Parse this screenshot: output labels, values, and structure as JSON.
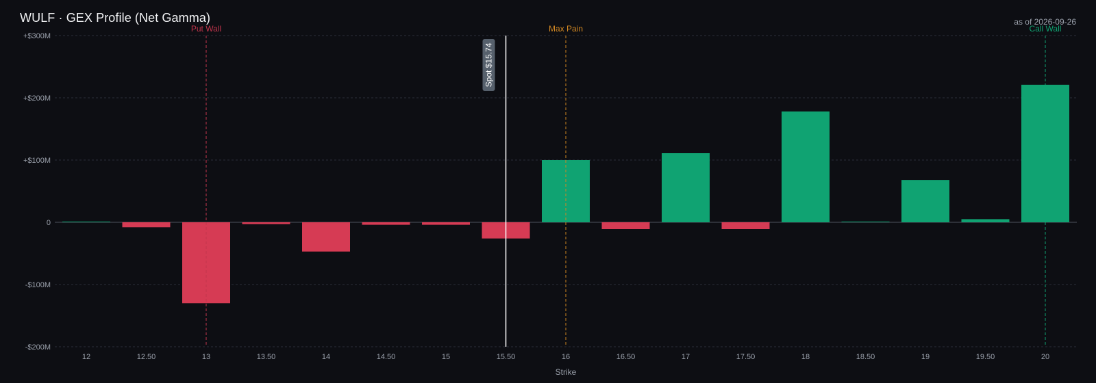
{
  "header": {
    "title": "WULF · GEX Profile (Net Gamma)",
    "as_of": "as of 2026-09-26"
  },
  "colors": {
    "positive": "#10a372",
    "negative": "#d63b54",
    "put_wall": "#c2354c",
    "max_pain": "#cf8622",
    "call_wall": "#10a372",
    "spot": "#ffffff",
    "grid": "#2a2f38"
  },
  "chart_data": {
    "type": "bar",
    "title": "WULF · GEX Profile (Net Gamma)",
    "xlabel": "Strike",
    "ylabel": "",
    "categories": [
      "12",
      "12.50",
      "13",
      "13.50",
      "14",
      "14.50",
      "15",
      "15.50",
      "16",
      "16.50",
      "17",
      "17.50",
      "18",
      "18.50",
      "19",
      "19.50",
      "20"
    ],
    "x": [
      12,
      12.5,
      13,
      13.5,
      14,
      14.5,
      15,
      15.5,
      16,
      16.5,
      17,
      17.5,
      18,
      18.5,
      19,
      19.5,
      20
    ],
    "values": [
      0,
      -8,
      -130,
      -3,
      -47,
      -4,
      -4,
      -26,
      100,
      -11,
      111,
      -11,
      178,
      0,
      68,
      5,
      221
    ],
    "unit": "$M",
    "ylim": [
      -200,
      300
    ],
    "yticks": [
      300,
      200,
      100,
      0,
      -100,
      -200
    ],
    "ytick_labels": [
      "+$300M",
      "+$200M",
      "+$100M",
      "0",
      "-$100M",
      "-$200M"
    ],
    "grid": true,
    "legend": "none",
    "markers": {
      "put_wall": {
        "label": "Put Wall",
        "strike": 13
      },
      "max_pain": {
        "label": "Max Pain",
        "strike": 16
      },
      "call_wall": {
        "label": "Call Wall",
        "strike": 20
      },
      "spot": {
        "label": "Spot $15.74",
        "strike": 15.5
      }
    }
  }
}
